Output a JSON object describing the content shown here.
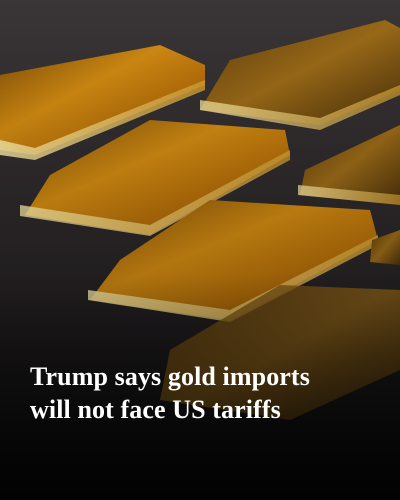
{
  "headline": {
    "lines": [
      "Trump says gold imports",
      "will not face US tariffs"
    ]
  }
}
